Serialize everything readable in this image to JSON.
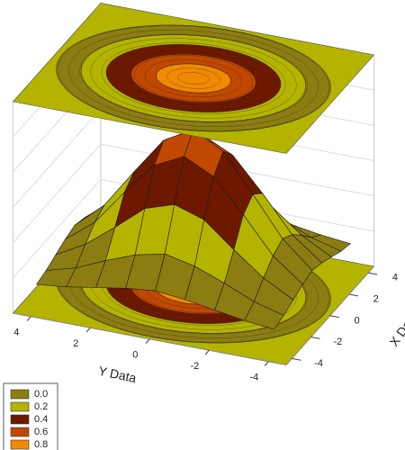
{
  "chart_data": {
    "type": "surface3d",
    "x_label": "X Data",
    "y_label": "Y Data",
    "x": [
      -4,
      -3,
      -2,
      -1,
      0,
      1,
      2,
      3,
      4
    ],
    "y": [
      -4,
      -3,
      -2,
      -1,
      0,
      1,
      2,
      3,
      4
    ],
    "z": [
      [
        0.02,
        0.04,
        0.07,
        0.1,
        0.12,
        0.1,
        0.07,
        0.04,
        0.02
      ],
      [
        0.04,
        0.09,
        0.17,
        0.24,
        0.28,
        0.24,
        0.17,
        0.09,
        0.04
      ],
      [
        0.07,
        0.17,
        0.31,
        0.46,
        0.52,
        0.46,
        0.31,
        0.17,
        0.07
      ],
      [
        0.1,
        0.24,
        0.46,
        0.66,
        0.75,
        0.66,
        0.46,
        0.24,
        0.1
      ],
      [
        0.12,
        0.28,
        0.52,
        0.75,
        0.85,
        0.75,
        0.52,
        0.28,
        0.12
      ],
      [
        0.1,
        0.24,
        0.46,
        0.66,
        0.75,
        0.66,
        0.46,
        0.24,
        0.1
      ],
      [
        0.07,
        0.17,
        0.31,
        0.46,
        0.52,
        0.46,
        0.31,
        0.17,
        0.07
      ],
      [
        0.04,
        0.09,
        0.17,
        0.24,
        0.28,
        0.24,
        0.17,
        0.09,
        0.04
      ],
      [
        0.02,
        0.04,
        0.07,
        0.1,
        0.12,
        0.1,
        0.07,
        0.04,
        0.02
      ]
    ],
    "xticks": [
      -4,
      -2,
      0,
      2,
      4
    ],
    "yticks": [
      -4,
      -2,
      0,
      2,
      4
    ],
    "levels": [
      {
        "value": 0,
        "label": "0.0",
        "color": "#8c7d12"
      },
      {
        "value": 0.2,
        "label": "0.2",
        "color": "#b4b400"
      },
      {
        "value": 0.4,
        "label": "0.4",
        "color": "#6e1800"
      },
      {
        "value": 0.6,
        "label": "0.6",
        "color": "#c04800"
      },
      {
        "value": 0.8,
        "label": "0.8",
        "color": "#f08a00"
      }
    ]
  }
}
